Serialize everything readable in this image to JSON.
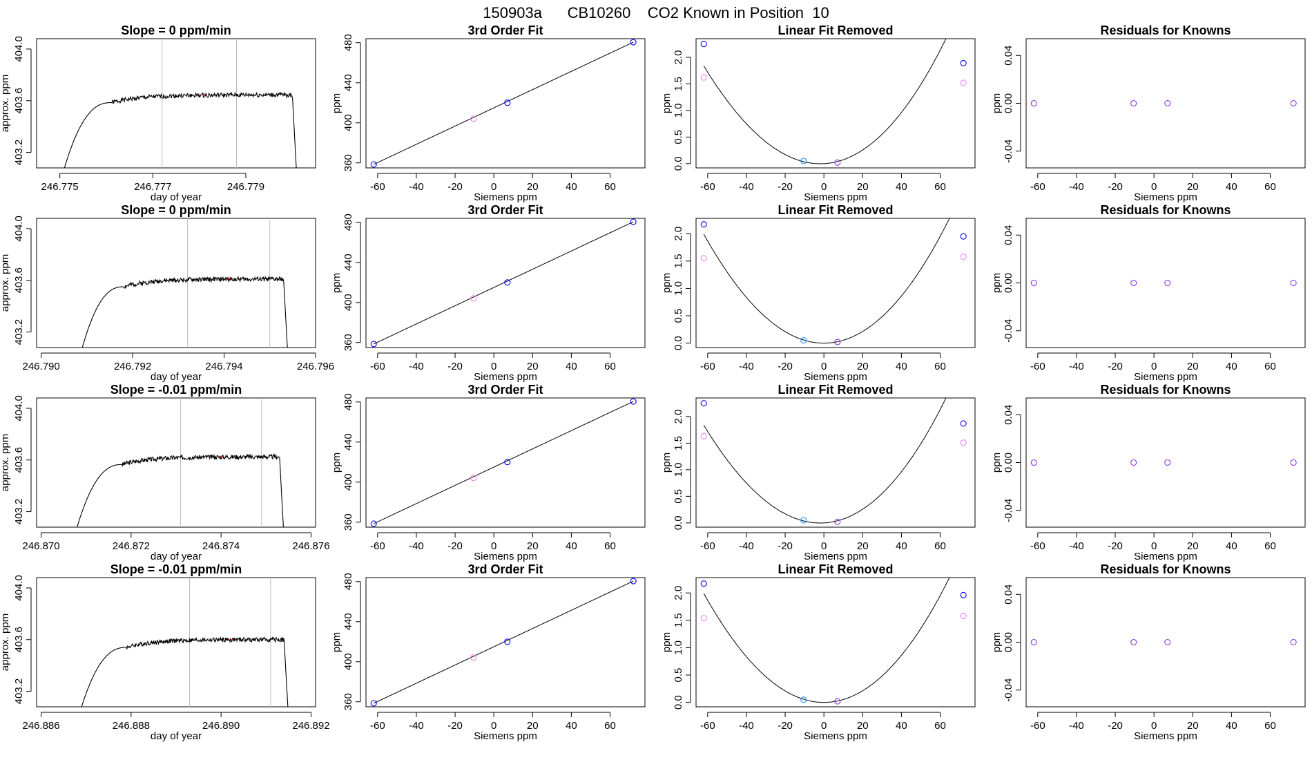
{
  "figure": {
    "title": "150903a      CB10260    CO2 Known in Position  10",
    "colors": {
      "trace": "#000000",
      "guide": "#bebebe",
      "fit": "#000000",
      "blue": "#0000ff",
      "cyan": "#1e90ff",
      "magenta": "#ee82ee",
      "purple": "#8a2be2",
      "red": "#ff0000"
    }
  },
  "chart_data": [
    {
      "type": "line",
      "panel": "timeseries",
      "row": 0,
      "title": "Slope =  0  ppm/min",
      "xlabel": "day of year",
      "ylabel": "approx. ppm",
      "xlim": [
        246.7745,
        246.7805
      ],
      "ylim": [
        403.08,
        404.08
      ],
      "xticks": [
        246.775,
        246.777,
        246.779
      ],
      "xtick_labels": [
        "246.775",
        "246.777",
        "246.779"
      ],
      "yticks": [
        403.2,
        403.6,
        404.0
      ],
      "ytick_labels": [
        "403.2",
        "403.6",
        "404.0"
      ],
      "vlines": [
        246.7772,
        246.7788
      ],
      "trace": {
        "start": 246.7751,
        "rise_end": 246.7761,
        "plateau": 403.645,
        "fall_start": 246.78,
        "end": 246.7801,
        "start_level": 403.08,
        "seed": 1
      },
      "marker_x": 246.7781
    },
    {
      "type": "line",
      "panel": "timeseries",
      "row": 1,
      "title": "Slope =  0  ppm/min",
      "xlabel": "day of year",
      "ylabel": "approx. ppm",
      "xlim": [
        246.7899,
        246.796
      ],
      "ylim": [
        403.08,
        404.08
      ],
      "xticks": [
        246.79,
        246.792,
        246.794,
        246.796
      ],
      "xtick_labels": [
        "246.790",
        "246.792",
        "246.794",
        "246.796"
      ],
      "yticks": [
        403.2,
        403.6,
        404.0
      ],
      "ytick_labels": [
        "403.2",
        "403.6",
        "404.0"
      ],
      "vlines": [
        246.7932,
        246.795
      ],
      "trace": {
        "start": 246.7909,
        "rise_end": 246.7918,
        "plateau": 403.61,
        "fall_start": 246.7953,
        "end": 246.7954,
        "start_level": 403.08,
        "seed": 2
      },
      "marker_x": 246.7941
    },
    {
      "type": "line",
      "panel": "timeseries",
      "row": 2,
      "title": "Slope =  -0.01  ppm/min",
      "xlabel": "day of year",
      "ylabel": "approx. ppm",
      "xlim": [
        246.8699,
        246.8761
      ],
      "ylim": [
        403.08,
        404.08
      ],
      "xticks": [
        246.87,
        246.872,
        246.874,
        246.876
      ],
      "xtick_labels": [
        "246.870",
        "246.872",
        "246.874",
        "246.876"
      ],
      "yticks": [
        403.2,
        403.6,
        404.0
      ],
      "ytick_labels": [
        "403.2",
        "403.6",
        "404.0"
      ],
      "vlines": [
        246.8731,
        246.8749
      ],
      "trace": {
        "start": 246.8708,
        "rise_end": 246.8718,
        "plateau": 403.625,
        "fall_start": 246.8753,
        "end": 246.8754,
        "start_level": 403.08,
        "seed": 3
      },
      "marker_x": 246.874
    },
    {
      "type": "line",
      "panel": "timeseries",
      "row": 3,
      "title": "Slope =  -0.01  ppm/min",
      "xlabel": "day of year",
      "ylabel": "approx. ppm",
      "xlim": [
        246.8859,
        246.8921
      ],
      "ylim": [
        403.08,
        404.08
      ],
      "xticks": [
        246.886,
        246.888,
        246.89,
        246.892
      ],
      "xtick_labels": [
        "246.886",
        "246.888",
        "246.890",
        "246.892"
      ],
      "yticks": [
        403.2,
        403.6,
        404.0
      ],
      "ytick_labels": [
        "403.2",
        "403.6",
        "404.0"
      ],
      "vlines": [
        246.8893,
        246.8911
      ],
      "trace": {
        "start": 246.8869,
        "rise_end": 246.8879,
        "plateau": 403.6,
        "fall_start": 246.8914,
        "end": 246.8915,
        "start_level": 403.08,
        "seed": 4
      },
      "marker_x": 246.8902
    },
    {
      "type": "scatter",
      "panel": "fit",
      "row": 0,
      "title": "3rd Order Fit",
      "xlabel": "Siemens ppm",
      "ylabel": "ppm",
      "xlim": [
        -66,
        78
      ],
      "ylim": [
        355,
        484
      ],
      "xticks": [
        -60,
        -40,
        -20,
        0,
        20,
        40,
        60
      ],
      "xtick_labels": [
        "-60",
        "-40",
        "-20",
        "0",
        "20",
        "40",
        "60"
      ],
      "yticks": [
        360,
        400,
        440,
        480
      ],
      "ytick_labels": [
        "360",
        "400",
        "440",
        "480"
      ],
      "line": [
        [
          -62,
          358.5
        ],
        [
          72,
          480.5
        ]
      ],
      "points": [
        {
          "x": -62,
          "y": 358.5,
          "color": "blue"
        },
        {
          "x": -10.5,
          "y": 404.2,
          "color": "magenta"
        },
        {
          "x": 7,
          "y": 420.0,
          "color": "blue"
        },
        {
          "x": 72,
          "y": 480.5,
          "color": "blue"
        }
      ]
    },
    {
      "type": "scatter",
      "panel": "fit",
      "row": 1,
      "title": "3rd Order Fit",
      "xlabel": "Siemens ppm",
      "ylabel": "ppm",
      "xlim": [
        -66,
        78
      ],
      "ylim": [
        355,
        484
      ],
      "xticks": [
        -60,
        -40,
        -20,
        0,
        20,
        40,
        60
      ],
      "xtick_labels": [
        "-60",
        "-40",
        "-20",
        "0",
        "20",
        "40",
        "60"
      ],
      "yticks": [
        360,
        400,
        440,
        480
      ],
      "ytick_labels": [
        "360",
        "400",
        "440",
        "480"
      ],
      "line": [
        [
          -62,
          358.5
        ],
        [
          72,
          480.5
        ]
      ],
      "points": [
        {
          "x": -62,
          "y": 358.5,
          "color": "blue"
        },
        {
          "x": -10.5,
          "y": 404.2,
          "color": "magenta"
        },
        {
          "x": 7,
          "y": 420.0,
          "color": "blue"
        },
        {
          "x": 72,
          "y": 480.5,
          "color": "blue"
        }
      ]
    },
    {
      "type": "scatter",
      "panel": "fit",
      "row": 2,
      "title": "3rd Order Fit",
      "xlabel": "Siemens ppm",
      "ylabel": "ppm",
      "xlim": [
        -66,
        78
      ],
      "ylim": [
        355,
        484
      ],
      "xticks": [
        -60,
        -40,
        -20,
        0,
        20,
        40,
        60
      ],
      "xtick_labels": [
        "-60",
        "-40",
        "-20",
        "0",
        "20",
        "40",
        "60"
      ],
      "yticks": [
        360,
        400,
        440,
        480
      ],
      "ytick_labels": [
        "360",
        "400",
        "440",
        "480"
      ],
      "line": [
        [
          -62,
          358.5
        ],
        [
          72,
          480.5
        ]
      ],
      "points": [
        {
          "x": -62,
          "y": 358.5,
          "color": "blue"
        },
        {
          "x": -10.5,
          "y": 404.2,
          "color": "magenta"
        },
        {
          "x": 7,
          "y": 420.0,
          "color": "blue"
        },
        {
          "x": 72,
          "y": 480.5,
          "color": "blue"
        }
      ]
    },
    {
      "type": "scatter",
      "panel": "fit",
      "row": 3,
      "title": "3rd Order Fit",
      "xlabel": "Siemens ppm",
      "ylabel": "ppm",
      "xlim": [
        -66,
        78
      ],
      "ylim": [
        355,
        484
      ],
      "xticks": [
        -60,
        -40,
        -20,
        0,
        20,
        40,
        60
      ],
      "xtick_labels": [
        "-60",
        "-40",
        "-20",
        "0",
        "20",
        "40",
        "60"
      ],
      "yticks": [
        360,
        400,
        440,
        480
      ],
      "ytick_labels": [
        "360",
        "400",
        "440",
        "480"
      ],
      "line": [
        [
          -62,
          358.5
        ],
        [
          72,
          480.5
        ]
      ],
      "points": [
        {
          "x": -62,
          "y": 358.5,
          "color": "blue"
        },
        {
          "x": -10.5,
          "y": 404.2,
          "color": "magenta"
        },
        {
          "x": 7,
          "y": 420.0,
          "color": "blue"
        },
        {
          "x": 72,
          "y": 480.5,
          "color": "blue"
        }
      ]
    },
    {
      "type": "scatter",
      "panel": "linear-removed",
      "row": 0,
      "title": "Linear Fit Removed",
      "xlabel": "Siemens ppm",
      "ylabel": "ppm",
      "xlim": [
        -66,
        78
      ],
      "ylim": [
        -0.08,
        2.35
      ],
      "xticks": [
        -60,
        -40,
        -20,
        0,
        20,
        40,
        60
      ],
      "xtick_labels": [
        "-60",
        "-40",
        "-20",
        "0",
        "20",
        "40",
        "60"
      ],
      "yticks": [
        0.0,
        0.5,
        1.0,
        1.5,
        2.0
      ],
      "ytick_labels": [
        "0.0",
        "0.5",
        "1.0",
        "1.5",
        "2.0"
      ],
      "curve": {
        "a": 0.000535,
        "b": 0.002,
        "c": 0.0,
        "d": 4e-07,
        "x0": -62,
        "x1": 72
      },
      "points": [
        {
          "x": -62,
          "y": 2.25,
          "color": "blue"
        },
        {
          "x": -62,
          "y": 1.62,
          "color": "magenta"
        },
        {
          "x": -10.5,
          "y": 0.05,
          "color": "cyan"
        },
        {
          "x": 7,
          "y": 0.02,
          "color": "purple"
        },
        {
          "x": 72,
          "y": 1.89,
          "color": "blue"
        },
        {
          "x": 72,
          "y": 1.52,
          "color": "magenta"
        }
      ]
    },
    {
      "type": "scatter",
      "panel": "linear-removed",
      "row": 1,
      "title": "Linear Fit Removed",
      "xlabel": "Siemens ppm",
      "ylabel": "ppm",
      "xlim": [
        -66,
        78
      ],
      "ylim": [
        -0.08,
        2.28
      ],
      "xticks": [
        -60,
        -40,
        -20,
        0,
        20,
        40,
        60
      ],
      "xtick_labels": [
        "-60",
        "-40",
        "-20",
        "0",
        "20",
        "40",
        "60"
      ],
      "yticks": [
        0.0,
        0.5,
        1.0,
        1.5,
        2.0
      ],
      "ytick_labels": [
        "0.0",
        "0.5",
        "1.0",
        "1.5",
        "2.0"
      ],
      "curve": {
        "a": 0.00053,
        "b": 0.0,
        "c": 0.0,
        "d": 2e-07,
        "x0": -62,
        "x1": 72
      },
      "points": [
        {
          "x": -62,
          "y": 2.17,
          "color": "blue"
        },
        {
          "x": -62,
          "y": 1.55,
          "color": "magenta"
        },
        {
          "x": -10.5,
          "y": 0.05,
          "color": "cyan"
        },
        {
          "x": 7,
          "y": 0.02,
          "color": "purple"
        },
        {
          "x": 72,
          "y": 1.95,
          "color": "blue"
        },
        {
          "x": 72,
          "y": 1.58,
          "color": "magenta"
        }
      ]
    },
    {
      "type": "scatter",
      "panel": "linear-removed",
      "row": 2,
      "title": "Linear Fit Removed",
      "xlabel": "Siemens ppm",
      "ylabel": "ppm",
      "xlim": [
        -66,
        78
      ],
      "ylim": [
        -0.08,
        2.35
      ],
      "xticks": [
        -60,
        -40,
        -20,
        0,
        20,
        40,
        60
      ],
      "xtick_labels": [
        "-60",
        "-40",
        "-20",
        "0",
        "20",
        "40",
        "60"
      ],
      "yticks": [
        0.0,
        0.5,
        1.0,
        1.5,
        2.0
      ],
      "ytick_labels": [
        "0.0",
        "0.5",
        "1.0",
        "1.5",
        "2.0"
      ],
      "curve": {
        "a": 0.000535,
        "b": 0.002,
        "c": 0.0,
        "d": 4e-07,
        "x0": -62,
        "x1": 72
      },
      "points": [
        {
          "x": -62,
          "y": 2.25,
          "color": "blue"
        },
        {
          "x": -62,
          "y": 1.63,
          "color": "magenta"
        },
        {
          "x": -10.5,
          "y": 0.05,
          "color": "cyan"
        },
        {
          "x": 7,
          "y": 0.02,
          "color": "purple"
        },
        {
          "x": 72,
          "y": 1.87,
          "color": "blue"
        },
        {
          "x": 72,
          "y": 1.51,
          "color": "magenta"
        }
      ]
    },
    {
      "type": "scatter",
      "panel": "linear-removed",
      "row": 3,
      "title": "Linear Fit Removed",
      "xlabel": "Siemens ppm",
      "ylabel": "ppm",
      "xlim": [
        -66,
        78
      ],
      "ylim": [
        -0.08,
        2.28
      ],
      "xticks": [
        -60,
        -40,
        -20,
        0,
        20,
        40,
        60
      ],
      "xtick_labels": [
        "-60",
        "-40",
        "-20",
        "0",
        "20",
        "40",
        "60"
      ],
      "yticks": [
        0.0,
        0.5,
        1.0,
        1.5,
        2.0
      ],
      "ytick_labels": [
        "0.0",
        "0.5",
        "1.0",
        "1.5",
        "2.0"
      ],
      "curve": {
        "a": 0.00053,
        "b": 0.0,
        "c": 0.0,
        "d": 2e-07,
        "x0": -62,
        "x1": 72
      },
      "points": [
        {
          "x": -62,
          "y": 2.17,
          "color": "blue"
        },
        {
          "x": -62,
          "y": 1.54,
          "color": "magenta"
        },
        {
          "x": -10.5,
          "y": 0.05,
          "color": "cyan"
        },
        {
          "x": 7,
          "y": 0.02,
          "color": "purple"
        },
        {
          "x": 72,
          "y": 1.96,
          "color": "blue"
        },
        {
          "x": 72,
          "y": 1.58,
          "color": "magenta"
        }
      ]
    },
    {
      "type": "scatter",
      "panel": "residuals",
      "row": 0,
      "title": "Residuals for Knowns",
      "xlabel": "Siemens ppm",
      "ylabel": "ppm",
      "xlim": [
        -66,
        78
      ],
      "ylim": [
        -0.054,
        0.054
      ],
      "xticks": [
        -60,
        -40,
        -20,
        0,
        20,
        40,
        60
      ],
      "xtick_labels": [
        "-60",
        "-40",
        "-20",
        "0",
        "20",
        "40",
        "60"
      ],
      "yticks": [
        -0.04,
        0.0,
        0.04
      ],
      "ytick_labels": [
        "-0.04",
        "0.00",
        "0.04"
      ],
      "points": [
        {
          "x": -62,
          "y": 0,
          "color": "purple"
        },
        {
          "x": -10.5,
          "y": 0,
          "color": "purple"
        },
        {
          "x": 7,
          "y": 0,
          "color": "purple"
        },
        {
          "x": 72,
          "y": 0,
          "color": "purple"
        }
      ]
    },
    {
      "type": "scatter",
      "panel": "residuals",
      "row": 1,
      "title": "Residuals for Knowns",
      "xlabel": "Siemens ppm",
      "ylabel": "ppm",
      "xlim": [
        -66,
        78
      ],
      "ylim": [
        -0.054,
        0.054
      ],
      "xticks": [
        -60,
        -40,
        -20,
        0,
        20,
        40,
        60
      ],
      "xtick_labels": [
        "-60",
        "-40",
        "-20",
        "0",
        "20",
        "40",
        "60"
      ],
      "yticks": [
        -0.04,
        0.0,
        0.04
      ],
      "ytick_labels": [
        "-0.04",
        "0.00",
        "0.04"
      ],
      "points": [
        {
          "x": -62,
          "y": 0,
          "color": "purple"
        },
        {
          "x": -10.5,
          "y": 0,
          "color": "purple"
        },
        {
          "x": 7,
          "y": 0,
          "color": "purple"
        },
        {
          "x": 72,
          "y": 0,
          "color": "purple"
        }
      ]
    },
    {
      "type": "scatter",
      "panel": "residuals",
      "row": 2,
      "title": "Residuals for Knowns",
      "xlabel": "Siemens ppm",
      "ylabel": "ppm",
      "xlim": [
        -66,
        78
      ],
      "ylim": [
        -0.054,
        0.054
      ],
      "xticks": [
        -60,
        -40,
        -20,
        0,
        20,
        40,
        60
      ],
      "xtick_labels": [
        "-60",
        "-40",
        "-20",
        "0",
        "20",
        "40",
        "60"
      ],
      "yticks": [
        -0.04,
        0.0,
        0.04
      ],
      "ytick_labels": [
        "-0.04",
        "0.00",
        "0.04"
      ],
      "points": [
        {
          "x": -62,
          "y": 0,
          "color": "purple"
        },
        {
          "x": -10.5,
          "y": 0,
          "color": "purple"
        },
        {
          "x": 7,
          "y": 0,
          "color": "purple"
        },
        {
          "x": 72,
          "y": 0,
          "color": "purple"
        }
      ]
    },
    {
      "type": "scatter",
      "panel": "residuals",
      "row": 3,
      "title": "Residuals for Knowns",
      "xlabel": "Siemens ppm",
      "ylabel": "ppm",
      "xlim": [
        -66,
        78
      ],
      "ylim": [
        -0.054,
        0.054
      ],
      "xticks": [
        -60,
        -40,
        -20,
        0,
        20,
        40,
        60
      ],
      "xtick_labels": [
        "-60",
        "-40",
        "-20",
        "0",
        "20",
        "40",
        "60"
      ],
      "yticks": [
        -0.04,
        0.0,
        0.04
      ],
      "ytick_labels": [
        "-0.04",
        "0.00",
        "0.04"
      ],
      "points": [
        {
          "x": -62,
          "y": 0,
          "color": "purple"
        },
        {
          "x": -10.5,
          "y": 0,
          "color": "purple"
        },
        {
          "x": 7,
          "y": 0,
          "color": "purple"
        },
        {
          "x": 72,
          "y": 0,
          "color": "purple"
        }
      ]
    }
  ]
}
